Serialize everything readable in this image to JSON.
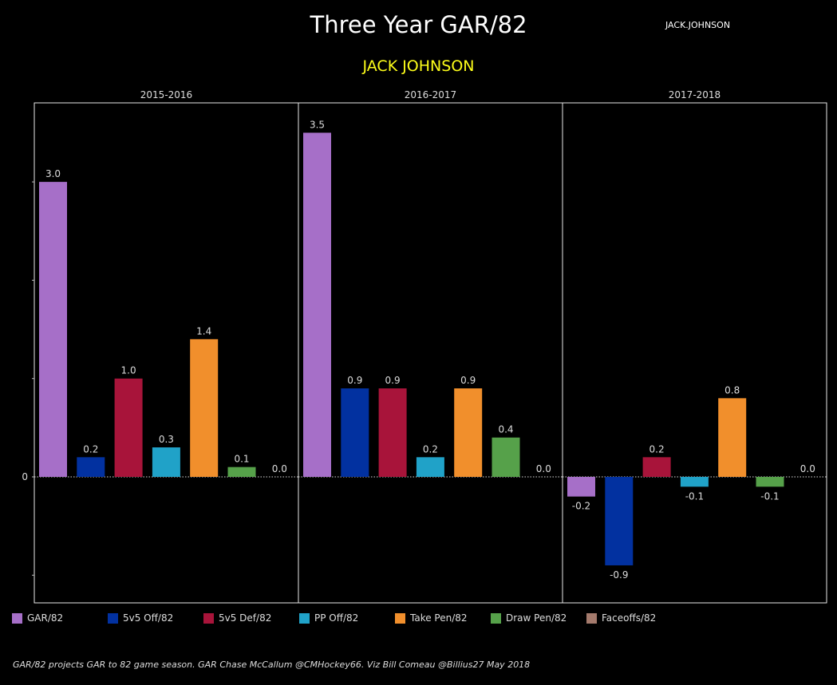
{
  "title": "Three Year GAR/82",
  "tag": "JACK.JOHNSON",
  "player": "JACK JOHNSON",
  "footer": "GAR/82 projects GAR to 82 game season. GAR Chase McCallum @CMHockey66. Viz Bill Comeau @Billius27 May 2018",
  "colors": {
    "GAR/82": "#a66fc8",
    "5v5 Off/82": "#0231a0",
    "5v5 Def/82": "#a8143a",
    "PP Off/82": "#20a2c8",
    "Take Pen/82": "#f18f2c",
    "Draw Pen/82": "#56a14a",
    "Faceoffs/82": "#a47a6c"
  },
  "chart_data": {
    "type": "bar",
    "categories": [
      "GAR/82",
      "5v5 Off/82",
      "5v5 Def/82",
      "PP Off/82",
      "Take Pen/82",
      "Draw Pen/82",
      "Faceoffs/82"
    ],
    "panels": [
      {
        "name": "2015-2016",
        "values": [
          3.0,
          0.2,
          1.0,
          0.3,
          1.4,
          0.1,
          0.0
        ],
        "labels": [
          "3.0",
          "0.2",
          "1.0",
          "0.3",
          "1.4",
          "0.1",
          "0.0"
        ]
      },
      {
        "name": "2016-2017",
        "values": [
          3.5,
          0.9,
          0.9,
          0.2,
          0.9,
          0.4,
          0.0
        ],
        "labels": [
          "3.5",
          "0.9",
          "0.9",
          "0.2",
          "0.9",
          "0.4",
          "0.0"
        ]
      },
      {
        "name": "2017-2018",
        "values": [
          -0.2,
          -0.9,
          0.2,
          -0.1,
          0.8,
          -0.1,
          0.0
        ],
        "labels": [
          "-0.2",
          "-0.9",
          "0.2",
          "-0.1",
          "0.8",
          "-0.1",
          "0.0"
        ]
      }
    ],
    "y_tick_labels": [
      "0"
    ],
    "ylim": [
      -1.3,
      3.8
    ],
    "legend": "bottom",
    "grid": false
  }
}
